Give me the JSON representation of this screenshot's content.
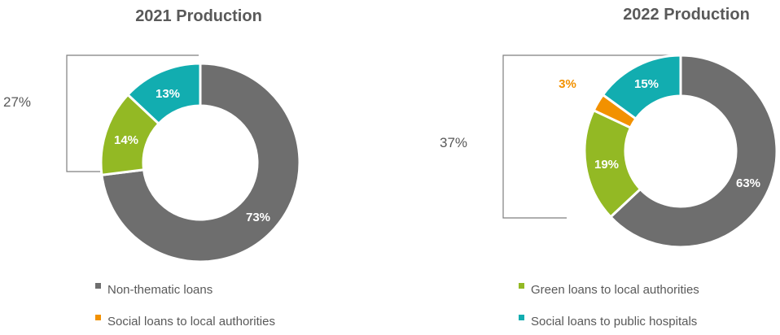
{
  "legend": [
    {
      "label": "Non-thematic loans",
      "color": "#6e6e6e"
    },
    {
      "label": "Green loans to local authorities",
      "color": "#93b924"
    },
    {
      "label": "Social loans to local authorities",
      "color": "#f29100"
    },
    {
      "label": "Social loans to public hospitals",
      "color": "#12adb0"
    }
  ],
  "chart_data": [
    {
      "type": "pie",
      "variant": "donut",
      "title": "2021 Production",
      "bracket_label": "27%",
      "slices": [
        {
          "name": "Non-thematic loans",
          "value": 73,
          "label": "73%",
          "color": "#6e6e6e",
          "label_color": "#ffffff"
        },
        {
          "name": "Green loans to local authorities",
          "value": 14,
          "label": "14%",
          "color": "#93b924",
          "label_color": "#ffffff"
        },
        {
          "name": "Social loans to public hospitals",
          "value": 13,
          "label": "13%",
          "color": "#12adb0",
          "label_color": "#ffffff"
        }
      ]
    },
    {
      "type": "pie",
      "variant": "donut",
      "title": "2022 Production",
      "bracket_label": "37%",
      "slices": [
        {
          "name": "Non-thematic loans",
          "value": 63,
          "label": "63%",
          "color": "#6e6e6e",
          "label_color": "#ffffff"
        },
        {
          "name": "Green loans to local authorities",
          "value": 19,
          "label": "19%",
          "color": "#93b924",
          "label_color": "#ffffff"
        },
        {
          "name": "Social loans to local authorities",
          "value": 3,
          "label": "3%",
          "color": "#f29100",
          "label_color": "#f29100"
        },
        {
          "name": "Social loans to public hospitals",
          "value": 15,
          "label": "15%",
          "color": "#12adb0",
          "label_color": "#ffffff"
        }
      ]
    }
  ]
}
